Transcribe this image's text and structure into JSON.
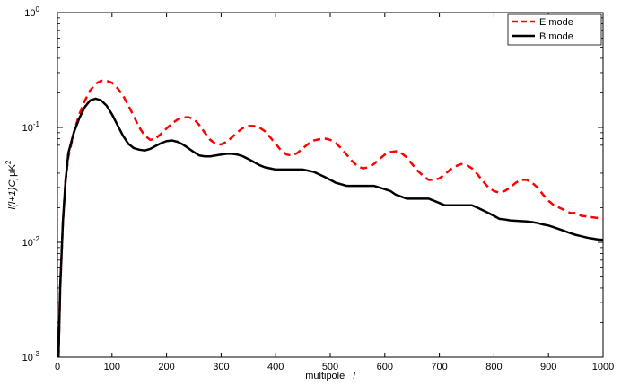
{
  "chart_data": {
    "type": "line",
    "xlabel": "multipole",
    "xlabel_var": "l",
    "ylabel": "l(l+1)C",
    "ylabel_sub": "l",
    "ylabel_unit": "μK",
    "ylabel_unit_exp": "2",
    "xlim": [
      0,
      1000
    ],
    "ylim": [
      0.001,
      1
    ],
    "yscale": "log",
    "grid": false,
    "legend_position": "top-right",
    "x_ticks": [
      "0",
      "100",
      "200",
      "300",
      "400",
      "500",
      "600",
      "700",
      "800",
      "900",
      "1000"
    ],
    "y_ticks": [
      {
        "base": "10",
        "exp": "-3"
      },
      {
        "base": "10",
        "exp": "-2"
      },
      {
        "base": "10",
        "exp": "-1"
      },
      {
        "base": "10",
        "exp": "0"
      }
    ],
    "series": [
      {
        "name": "E mode",
        "color": "#ff0000",
        "style": "dashed",
        "x": [
          2,
          5,
          10,
          15,
          20,
          30,
          40,
          50,
          60,
          70,
          80,
          90,
          100,
          110,
          120,
          130,
          140,
          150,
          160,
          170,
          180,
          190,
          200,
          210,
          220,
          230,
          240,
          250,
          260,
          270,
          280,
          290,
          300,
          310,
          320,
          330,
          340,
          350,
          360,
          370,
          380,
          390,
          400,
          410,
          420,
          430,
          440,
          450,
          460,
          470,
          480,
          490,
          500,
          510,
          520,
          530,
          540,
          550,
          560,
          570,
          580,
          590,
          600,
          610,
          620,
          630,
          640,
          650,
          660,
          670,
          680,
          690,
          700,
          710,
          720,
          730,
          740,
          750,
          760,
          770,
          780,
          790,
          800,
          810,
          820,
          830,
          840,
          850,
          860,
          870,
          880,
          890,
          900,
          910,
          920,
          930,
          940,
          950,
          960,
          970,
          980,
          990,
          1000
        ],
        "y": [
          0.0008,
          0.004,
          0.015,
          0.035,
          0.055,
          0.09,
          0.13,
          0.17,
          0.21,
          0.24,
          0.255,
          0.255,
          0.245,
          0.22,
          0.19,
          0.155,
          0.125,
          0.1,
          0.085,
          0.078,
          0.08,
          0.088,
          0.098,
          0.108,
          0.117,
          0.122,
          0.123,
          0.118,
          0.105,
          0.09,
          0.078,
          0.072,
          0.071,
          0.075,
          0.082,
          0.091,
          0.099,
          0.103,
          0.103,
          0.1,
          0.093,
          0.082,
          0.072,
          0.063,
          0.058,
          0.057,
          0.06,
          0.066,
          0.072,
          0.077,
          0.079,
          0.08,
          0.078,
          0.073,
          0.066,
          0.058,
          0.051,
          0.046,
          0.044,
          0.045,
          0.048,
          0.053,
          0.058,
          0.061,
          0.062,
          0.06,
          0.055,
          0.048,
          0.042,
          0.038,
          0.035,
          0.035,
          0.036,
          0.039,
          0.043,
          0.046,
          0.048,
          0.047,
          0.044,
          0.039,
          0.034,
          0.03,
          0.028,
          0.027,
          0.028,
          0.03,
          0.033,
          0.035,
          0.035,
          0.033,
          0.03,
          0.026,
          0.023,
          0.021,
          0.02,
          0.019,
          0.018,
          0.018,
          0.017,
          0.0168,
          0.0165,
          0.0163,
          0.0161
        ]
      },
      {
        "name": "B mode",
        "color": "#000000",
        "style": "solid",
        "x": [
          2,
          5,
          10,
          15,
          20,
          30,
          40,
          50,
          60,
          70,
          80,
          90,
          100,
          110,
          120,
          130,
          140,
          150,
          160,
          170,
          180,
          190,
          200,
          210,
          220,
          230,
          240,
          250,
          260,
          270,
          280,
          290,
          300,
          310,
          320,
          330,
          340,
          350,
          360,
          370,
          380,
          390,
          400,
          410,
          420,
          430,
          440,
          450,
          460,
          470,
          480,
          490,
          500,
          510,
          520,
          530,
          540,
          550,
          560,
          570,
          580,
          590,
          600,
          610,
          620,
          630,
          640,
          650,
          660,
          670,
          680,
          690,
          700,
          710,
          720,
          730,
          740,
          750,
          760,
          770,
          780,
          790,
          800,
          810,
          820,
          830,
          840,
          850,
          860,
          870,
          880,
          890,
          900,
          910,
          920,
          930,
          940,
          950,
          960,
          970,
          980,
          990,
          1000
        ],
        "y": [
          0.0008,
          0.004,
          0.015,
          0.035,
          0.06,
          0.09,
          0.12,
          0.15,
          0.172,
          0.178,
          0.172,
          0.155,
          0.13,
          0.105,
          0.085,
          0.072,
          0.066,
          0.064,
          0.063,
          0.065,
          0.069,
          0.073,
          0.076,
          0.077,
          0.075,
          0.071,
          0.066,
          0.061,
          0.057,
          0.056,
          0.056,
          0.057,
          0.058,
          0.059,
          0.059,
          0.058,
          0.056,
          0.053,
          0.05,
          0.047,
          0.045,
          0.044,
          0.043,
          0.043,
          0.043,
          0.043,
          0.043,
          0.043,
          0.042,
          0.041,
          0.039,
          0.037,
          0.035,
          0.033,
          0.032,
          0.031,
          0.031,
          0.031,
          0.031,
          0.031,
          0.031,
          0.03,
          0.029,
          0.028,
          0.026,
          0.025,
          0.024,
          0.024,
          0.024,
          0.024,
          0.024,
          0.023,
          0.022,
          0.021,
          0.021,
          0.021,
          0.021,
          0.021,
          0.021,
          0.02,
          0.019,
          0.018,
          0.017,
          0.016,
          0.0158,
          0.0155,
          0.0154,
          0.0153,
          0.0152,
          0.015,
          0.0147,
          0.0143,
          0.014,
          0.0135,
          0.013,
          0.0125,
          0.012,
          0.0116,
          0.0113,
          0.011,
          0.0108,
          0.0106,
          0.0105
        ]
      }
    ]
  }
}
